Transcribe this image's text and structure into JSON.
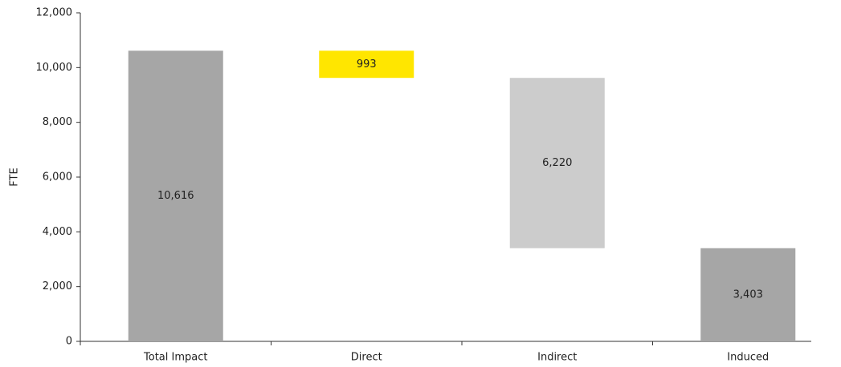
{
  "chart_data": {
    "type": "waterfall",
    "categories": [
      "Total Impact",
      "Direct",
      "Indirect",
      "Induced"
    ],
    "values": [
      10616,
      993,
      6220,
      3403
    ],
    "value_labels": [
      "10,616",
      "993",
      "6,220",
      "3,403"
    ],
    "total_index": 0,
    "colors": [
      "#a6a6a6",
      "#ffe600",
      "#cccccc",
      "#a6a6a6"
    ],
    "y_label": "FTE",
    "ylim": [
      0,
      12000
    ],
    "yticks": [
      0,
      {
        "value": 2000,
        "label": "2,000"
      },
      {
        "value": 4000,
        "label": "4,000"
      },
      {
        "value": 6000,
        "label": "6,000"
      },
      {
        "value": 8000,
        "label": "8,000"
      },
      {
        "value": 10000,
        "label": "10,000"
      },
      {
        "value": 12000,
        "label": "12,000"
      }
    ]
  }
}
